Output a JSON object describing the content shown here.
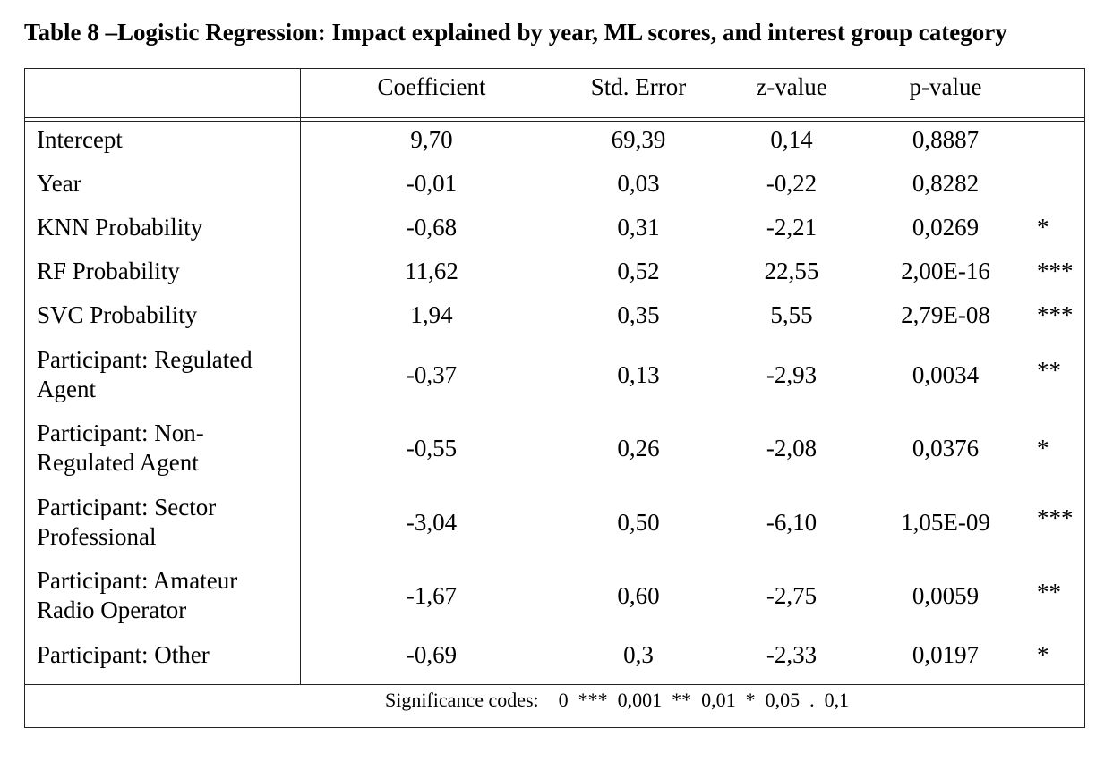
{
  "title": "Table 8 –Logistic Regression: Impact explained by year, ML scores, and interest group category",
  "headers": {
    "coefficient": "Coefficient",
    "std_error": "Std. Error",
    "z_value": "z-value",
    "p_value": "p-value"
  },
  "rows": [
    {
      "label": "Intercept",
      "coef": "9,70",
      "se": "69,39",
      "z": "0,14",
      "p": "0,8887",
      "sig": ""
    },
    {
      "label": "Year",
      "coef": "-0,01",
      "se": "0,03",
      "z": "-0,22",
      "p": "0,8282",
      "sig": ""
    },
    {
      "label": "KNN Probability",
      "coef": "-0,68",
      "se": "0,31",
      "z": "-2,21",
      "p": "0,0269",
      "sig": "*"
    },
    {
      "label": "RF Probability",
      "coef": "11,62",
      "se": "0,52",
      "z": "22,55",
      "p": "2,00E-16",
      "sig": "***"
    },
    {
      "label": "SVC Probability",
      "coef": "1,94",
      "se": "0,35",
      "z": "5,55",
      "p": "2,79E-08",
      "sig": "***"
    },
    {
      "label": "Participant: Regulated Agent",
      "coef": "-0,37",
      "se": "0,13",
      "z": "-2,93",
      "p": "0,0034",
      "sig": "**"
    },
    {
      "label": "Participant: Non-Regulated Agent",
      "coef": "-0,55",
      "se": "0,26",
      "z": "-2,08",
      "p": "0,0376",
      "sig": "*"
    },
    {
      "label": "Participant: Sector Professional",
      "coef": "-3,04",
      "se": "0,50",
      "z": "-6,10",
      "p": "1,05E-09",
      "sig": "***"
    },
    {
      "label": "Participant: Amateur Radio Operator",
      "coef": "-1,67",
      "se": "0,60",
      "z": "-2,75",
      "p": "0,0059",
      "sig": "**"
    },
    {
      "label": "Participant: Other",
      "coef": "-0,69",
      "se": "0,3",
      "z": "-2,33",
      "p": "0,0197",
      "sig": "*"
    }
  ],
  "footnote": "Significance codes:    0  ***  0,001  **  0,01  *  0,05  .  0,1"
}
